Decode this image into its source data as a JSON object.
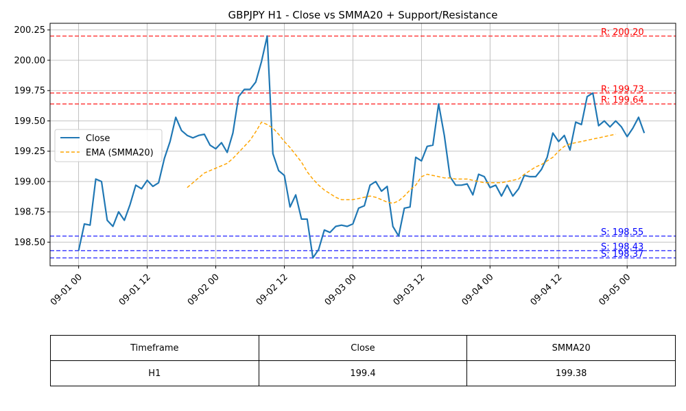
{
  "chart_data": {
    "type": "line",
    "title": "GBPJPY H1 - Close vs SMMA20 + Support/Resistance",
    "xlabel": "",
    "ylabel": "",
    "x_ticks": [
      "09-01 00",
      "09-01 12",
      "09-02 00",
      "09-02 12",
      "09-03 00",
      "09-03 12",
      "09-04 00",
      "09-04 12",
      "09-05 00"
    ],
    "y_ticks": [
      "198.50",
      "198.75",
      "199.00",
      "199.25",
      "199.50",
      "199.75",
      "200.00",
      "200.25"
    ],
    "ylim": [
      198.305,
      200.305
    ],
    "xlim_hours": [
      -5,
      104.5
    ],
    "grid": true,
    "legend_position": "center-left",
    "series": [
      {
        "name": "Close",
        "color": "#1f77b4",
        "style": "solid",
        "start_hour": 0,
        "values": [
          198.43,
          198.65,
          198.64,
          199.02,
          199.0,
          198.68,
          198.63,
          198.75,
          198.68,
          198.81,
          198.97,
          198.94,
          199.01,
          198.96,
          198.99,
          199.19,
          199.33,
          199.53,
          199.42,
          199.38,
          199.36,
          199.38,
          199.39,
          199.3,
          199.27,
          199.32,
          199.24,
          199.4,
          199.7,
          199.76,
          199.76,
          199.82,
          199.99,
          200.2,
          199.23,
          199.09,
          199.05,
          198.79,
          198.89,
          198.69,
          198.69,
          198.37,
          198.44,
          198.6,
          198.58,
          198.63,
          198.64,
          198.63,
          198.65,
          198.78,
          198.8,
          198.97,
          199.0,
          198.92,
          198.96,
          198.63,
          198.55,
          198.78,
          198.79,
          199.2,
          199.17,
          199.29,
          199.3,
          199.64,
          199.38,
          199.04,
          198.97,
          198.97,
          198.98,
          198.89,
          199.06,
          199.04,
          198.95,
          198.97,
          198.88,
          198.97,
          198.88,
          198.94,
          199.05,
          199.04,
          199.04,
          199.1,
          199.2,
          199.4,
          199.33,
          199.38,
          199.26,
          199.49,
          199.47,
          199.7,
          199.73,
          199.46,
          199.5,
          199.45,
          199.5,
          199.45,
          199.37,
          199.44,
          199.53,
          199.4
        ]
      },
      {
        "name": "EMA (SMMA20)",
        "color": "#ffa500",
        "style": "dashed",
        "start_hour": 19,
        "values": [
          198.95,
          198.99,
          199.03,
          199.07,
          199.09,
          199.11,
          199.13,
          199.15,
          199.19,
          199.24,
          199.29,
          199.34,
          199.41,
          199.49,
          199.47,
          199.44,
          199.39,
          199.33,
          199.28,
          199.22,
          199.16,
          199.08,
          199.02,
          198.97,
          198.93,
          198.9,
          198.87,
          198.85,
          198.85,
          198.85,
          198.86,
          198.87,
          198.88,
          198.87,
          198.85,
          198.83,
          198.82,
          198.84,
          198.88,
          198.93,
          198.97,
          199.04,
          199.06,
          199.05,
          199.04,
          199.03,
          199.03,
          199.02,
          199.02,
          199.02,
          199.01,
          199.0,
          198.99,
          198.99,
          198.99,
          198.99,
          199.0,
          199.01,
          199.02,
          199.06,
          199.09,
          199.12,
          199.14,
          199.17,
          199.2,
          199.25,
          199.29,
          199.31,
          199.32,
          199.33,
          199.34,
          199.35,
          199.36,
          199.37,
          199.38,
          199.39
        ]
      }
    ],
    "levels": [
      {
        "kind": "resistance",
        "label": "R: 200.20",
        "value": 200.2,
        "color": "#ff0000"
      },
      {
        "kind": "resistance",
        "label": "R: 199.73",
        "value": 199.73,
        "color": "#ff0000"
      },
      {
        "kind": "resistance",
        "label": "R: 199.64",
        "value": 199.64,
        "color": "#ff0000"
      },
      {
        "kind": "support",
        "label": "S: 198.55",
        "value": 198.55,
        "color": "#0000ff"
      },
      {
        "kind": "support",
        "label": "S: 198.43",
        "value": 198.43,
        "color": "#0000ff"
      },
      {
        "kind": "support",
        "label": "S: 198.37",
        "value": 198.37,
        "color": "#0000ff"
      }
    ]
  },
  "table": {
    "headers": [
      "Timeframe",
      "Close",
      "SMMA20"
    ],
    "row": [
      "H1",
      "199.4",
      "199.38"
    ]
  }
}
